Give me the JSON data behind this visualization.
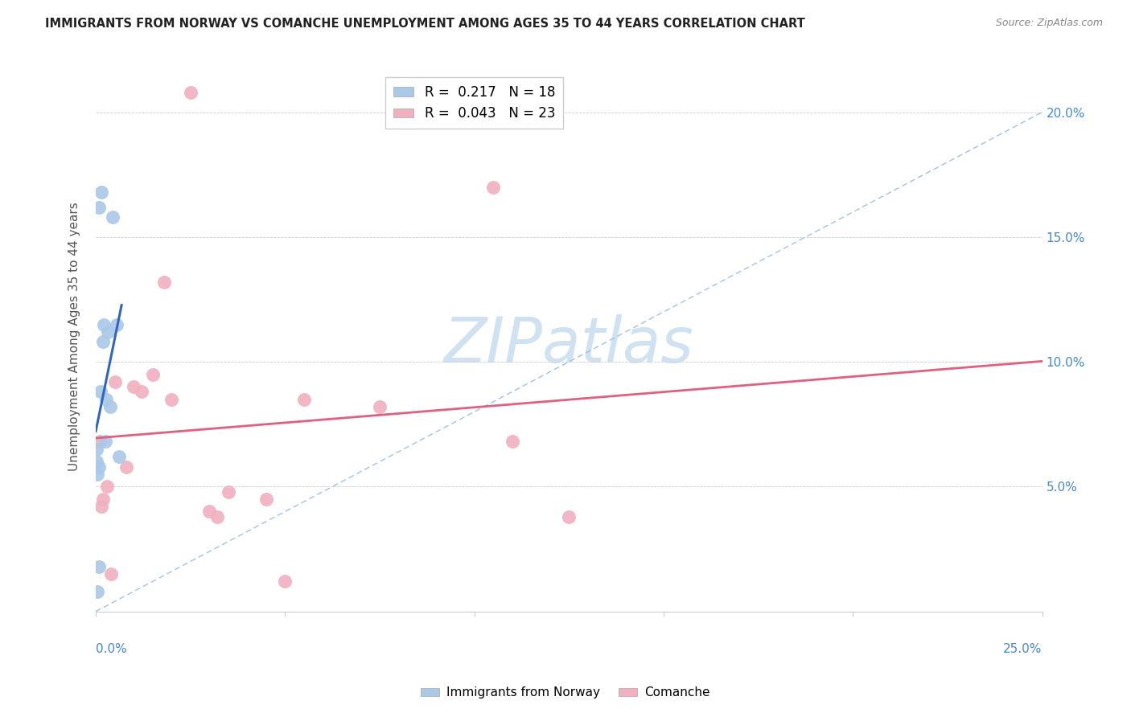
{
  "title": "IMMIGRANTS FROM NORWAY VS COMANCHE UNEMPLOYMENT AMONG AGES 35 TO 44 YEARS CORRELATION CHART",
  "source": "Source: ZipAtlas.com",
  "ylabel": "Unemployment Among Ages 35 to 44 years",
  "xlim": [
    0,
    25
  ],
  "ylim": [
    0,
    22
  ],
  "legend1_label": "Immigrants from Norway",
  "legend2_label": "Comanche",
  "R1": "0.217",
  "N1": "18",
  "R2": "0.043",
  "N2": "23",
  "norway_color": "#aac8e8",
  "comanche_color": "#f0b0c0",
  "norway_line_color": "#3366bb",
  "comanche_line_color": "#e06080",
  "diagonal_color": "#99bbdd",
  "norway_x": [
    0.15,
    0.45,
    0.08,
    0.22,
    0.32,
    0.55,
    0.18,
    0.12,
    0.28,
    0.38,
    0.08,
    0.04,
    0.62,
    0.08,
    0.04,
    0.02,
    0.02,
    0.25
  ],
  "norway_y": [
    16.8,
    15.8,
    16.2,
    11.5,
    11.2,
    11.5,
    10.8,
    8.8,
    8.5,
    8.2,
    5.8,
    5.5,
    6.2,
    1.8,
    0.8,
    6.0,
    6.5,
    6.8
  ],
  "comanche_x": [
    2.5,
    0.1,
    0.5,
    1.2,
    1.0,
    1.5,
    1.8,
    2.0,
    5.5,
    7.5,
    11.0,
    3.5,
    4.5,
    3.0,
    3.2,
    10.5,
    12.5,
    0.3,
    0.8,
    0.2,
    0.15,
    5.0,
    0.4
  ],
  "comanche_y": [
    20.8,
    6.8,
    9.2,
    8.8,
    9.0,
    9.5,
    13.2,
    8.5,
    8.5,
    8.2,
    6.8,
    4.8,
    4.5,
    4.0,
    3.8,
    17.0,
    3.8,
    5.0,
    5.8,
    4.5,
    4.2,
    1.2,
    1.5
  ],
  "watermark_zip": "ZIP",
  "watermark_atlas": "atlas",
  "watermark_color_zip": "#c8ddf0",
  "watermark_color_atlas": "#c8ddf0"
}
